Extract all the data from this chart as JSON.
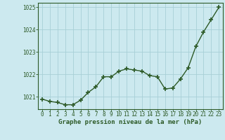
{
  "x": [
    0,
    1,
    2,
    3,
    4,
    5,
    6,
    7,
    8,
    9,
    10,
    11,
    12,
    13,
    14,
    15,
    16,
    17,
    18,
    19,
    20,
    21,
    22,
    23
  ],
  "y": [
    1020.9,
    1020.8,
    1020.75,
    1020.65,
    1020.65,
    1020.85,
    1021.2,
    1021.45,
    1021.9,
    1021.9,
    1022.15,
    1022.25,
    1022.2,
    1022.15,
    1021.95,
    1021.9,
    1021.35,
    1021.4,
    1021.8,
    1022.3,
    1023.25,
    1023.9,
    1024.45,
    1025.0
  ],
  "line_color": "#2d5a27",
  "marker": "+",
  "marker_size": 4,
  "marker_lw": 1.2,
  "bg_color": "#cce9ef",
  "grid_color": "#a8cfd6",
  "label_color": "#2d5a27",
  "ylim": [
    1020.45,
    1025.2
  ],
  "yticks": [
    1021,
    1022,
    1023,
    1024,
    1025
  ],
  "xticks": [
    0,
    1,
    2,
    3,
    4,
    5,
    6,
    7,
    8,
    9,
    10,
    11,
    12,
    13,
    14,
    15,
    16,
    17,
    18,
    19,
    20,
    21,
    22,
    23
  ],
  "xlabel": "Graphe pression niveau de la mer (hPa)",
  "border_color": "#2d5a27",
  "line_width": 1.0,
  "xlabel_fontsize": 6.5,
  "tick_fontsize": 5.5
}
